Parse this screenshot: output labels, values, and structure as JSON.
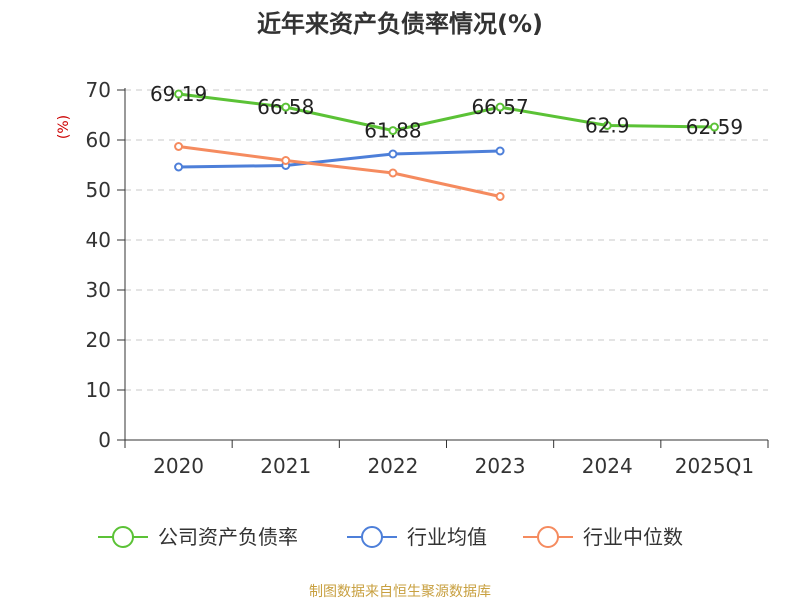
{
  "chart_data": {
    "type": "line",
    "title": "近年来资产负债率情况(%)",
    "ylabel": "(%)",
    "xlabel": "",
    "categories": [
      "2020",
      "2021",
      "2022",
      "2023",
      "2024",
      "2025Q1"
    ],
    "ylim": [
      0,
      70
    ],
    "yticks": [
      0,
      10,
      20,
      30,
      40,
      50,
      60,
      70
    ],
    "grid": true,
    "legend_position": "bottom",
    "series": [
      {
        "name": "公司资产负债率",
        "color": "#5bc236",
        "values": [
          69.19,
          66.58,
          61.88,
          66.57,
          62.9,
          62.59
        ],
        "labels": [
          "69.19",
          "66.58",
          "61.88",
          "66.57",
          "62.9",
          "62.59"
        ]
      },
      {
        "name": "行业均值",
        "color": "#4d7fd9",
        "values": [
          54.6,
          54.9,
          57.2,
          57.8,
          null,
          null
        ]
      },
      {
        "name": "行业中位数",
        "color": "#f58b5f",
        "values": [
          58.7,
          55.9,
          53.4,
          48.7,
          null,
          null
        ]
      }
    ]
  },
  "source": "制图数据来自恒生聚源数据库"
}
